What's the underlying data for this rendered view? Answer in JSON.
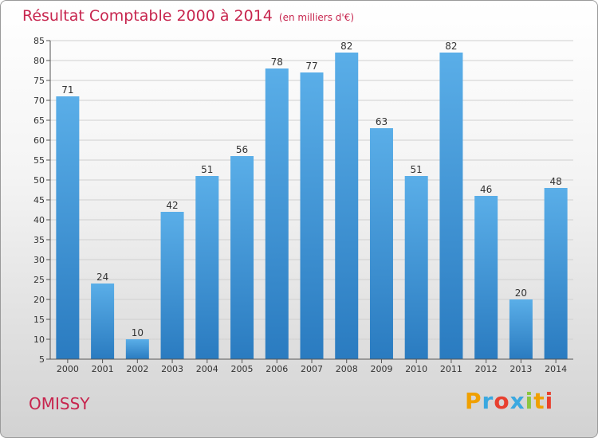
{
  "title": "Résultat Comptable 2000 à 2014",
  "subtitle": "(en milliers d'€)",
  "town": "OMISSY",
  "logo": {
    "letters": [
      "P",
      "r",
      "o",
      "x",
      "i",
      "t",
      "i"
    ],
    "colors": [
      "#f0a000",
      "#3aa8e0",
      "#e8402f",
      "#3aa8e0",
      "#8cc63f",
      "#f0a000",
      "#e8402f"
    ]
  },
  "colors": {
    "bar_top": "#5aaee8",
    "bar_bottom": "#2a7bc0",
    "title": "#c7254e",
    "grid": "#d0d0d0"
  },
  "chart_data": {
    "type": "bar",
    "title": "Résultat Comptable 2000 à 2014",
    "ylabel": "(en milliers d'€)",
    "xlabel": "",
    "categories": [
      "2000",
      "2001",
      "2002",
      "2003",
      "2004",
      "2005",
      "2006",
      "2007",
      "2008",
      "2009",
      "2010",
      "2011",
      "2012",
      "2013",
      "2014"
    ],
    "values": [
      71,
      24,
      10,
      42,
      51,
      56,
      78,
      77,
      82,
      63,
      51,
      82,
      46,
      20,
      48
    ],
    "ylim": [
      5,
      85
    ],
    "yticks": [
      5,
      10,
      15,
      20,
      25,
      30,
      35,
      40,
      45,
      50,
      55,
      60,
      65,
      70,
      75,
      80,
      85
    ],
    "grid": true
  }
}
